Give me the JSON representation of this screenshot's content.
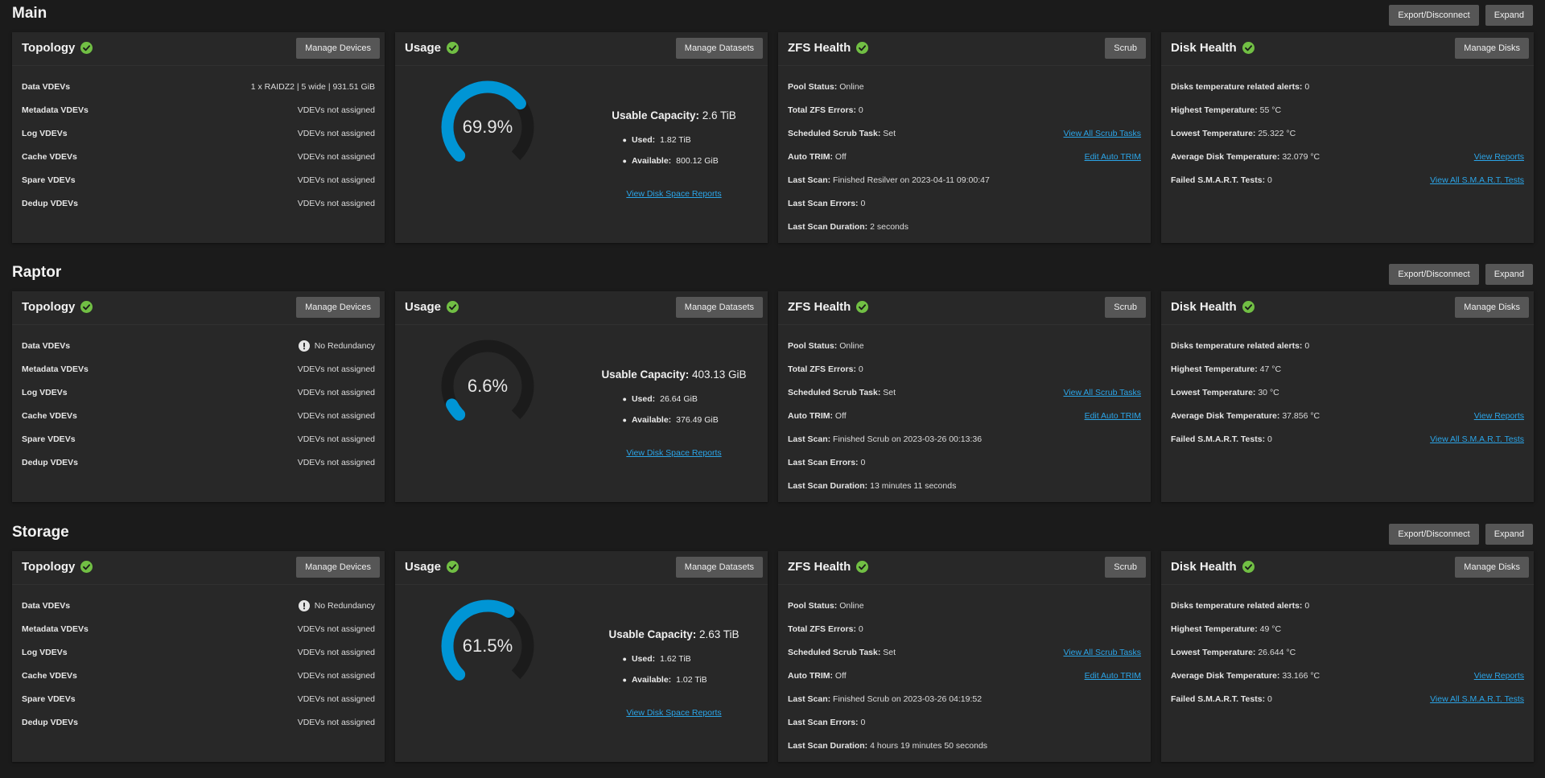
{
  "pool_button_labels": {
    "export": "Export/Disconnect",
    "expand": "Expand"
  },
  "card_titles": {
    "topology": "Topology",
    "usage": "Usage",
    "zfs": "ZFS Health",
    "disk": "Disk Health"
  },
  "card_buttons": {
    "topology": "Manage Devices",
    "usage": "Manage Datasets",
    "zfs": "Scrub",
    "disk": "Manage Disks"
  },
  "usage_labels": {
    "capacity": "Usable Capacity:",
    "used": "Used:",
    "available": "Available:",
    "report_link": "View Disk Space Reports"
  },
  "colors": {
    "ok_green": "#71bf44",
    "gauge_blue": "#0095d5",
    "gauge_track": "#1b1b1b",
    "link": "#2ba5e8"
  },
  "pools": [
    {
      "name": "Main",
      "topology": [
        {
          "label": "Data VDEVs",
          "value": "1 x RAIDZ2 | 5 wide | 931.51 GiB",
          "warn": false
        },
        {
          "label": "Metadata VDEVs",
          "value": "VDEVs not assigned",
          "warn": false
        },
        {
          "label": "Log VDEVs",
          "value": "VDEVs not assigned",
          "warn": false
        },
        {
          "label": "Cache VDEVs",
          "value": "VDEVs not assigned",
          "warn": false
        },
        {
          "label": "Spare VDEVs",
          "value": "VDEVs not assigned",
          "warn": false
        },
        {
          "label": "Dedup VDEVs",
          "value": "VDEVs not assigned",
          "warn": false
        }
      ],
      "usage": {
        "percent_text": "69.9%",
        "percent": 69.9,
        "capacity": "2.6 TiB",
        "used": "1.82 TiB",
        "available": "800.12 GiB"
      },
      "zfs": [
        {
          "label": "Pool Status:",
          "value": "Online",
          "link": ""
        },
        {
          "label": "Total ZFS Errors:",
          "value": "0",
          "link": ""
        },
        {
          "label": "Scheduled Scrub Task:",
          "value": "Set",
          "link": "View All Scrub Tasks"
        },
        {
          "label": "Auto TRIM:",
          "value": "Off",
          "link": "Edit Auto TRIM"
        },
        {
          "label": "Last Scan:",
          "value": "Finished Resilver on 2023-04-11 09:00:47",
          "link": ""
        },
        {
          "label": "Last Scan Errors:",
          "value": "0",
          "link": ""
        },
        {
          "label": "Last Scan Duration:",
          "value": "2 seconds",
          "link": ""
        }
      ],
      "disk": [
        {
          "label": "Disks temperature related alerts:",
          "value": "0",
          "link": ""
        },
        {
          "label": "Highest Temperature:",
          "value": "55 °C",
          "link": ""
        },
        {
          "label": "Lowest Temperature:",
          "value": "25.322 °C",
          "link": ""
        },
        {
          "label": "Average Disk Temperature:",
          "value": "32.079 °C",
          "link": "View Reports"
        },
        {
          "label": "Failed S.M.A.R.T. Tests:",
          "value": "0",
          "link": "View All S.M.A.R.T. Tests"
        }
      ]
    },
    {
      "name": "Raptor",
      "topology": [
        {
          "label": "Data VDEVs",
          "value": "No Redundancy",
          "warn": true
        },
        {
          "label": "Metadata VDEVs",
          "value": "VDEVs not assigned",
          "warn": false
        },
        {
          "label": "Log VDEVs",
          "value": "VDEVs not assigned",
          "warn": false
        },
        {
          "label": "Cache VDEVs",
          "value": "VDEVs not assigned",
          "warn": false
        },
        {
          "label": "Spare VDEVs",
          "value": "VDEVs not assigned",
          "warn": false
        },
        {
          "label": "Dedup VDEVs",
          "value": "VDEVs not assigned",
          "warn": false
        }
      ],
      "usage": {
        "percent_text": "6.6%",
        "percent": 6.6,
        "capacity": "403.13 GiB",
        "used": "26.64 GiB",
        "available": "376.49 GiB"
      },
      "zfs": [
        {
          "label": "Pool Status:",
          "value": "Online",
          "link": ""
        },
        {
          "label": "Total ZFS Errors:",
          "value": "0",
          "link": ""
        },
        {
          "label": "Scheduled Scrub Task:",
          "value": "Set",
          "link": "View All Scrub Tasks"
        },
        {
          "label": "Auto TRIM:",
          "value": "Off",
          "link": "Edit Auto TRIM"
        },
        {
          "label": "Last Scan:",
          "value": "Finished Scrub on 2023-03-26 00:13:36",
          "link": ""
        },
        {
          "label": "Last Scan Errors:",
          "value": "0",
          "link": ""
        },
        {
          "label": "Last Scan Duration:",
          "value": "13 minutes 11 seconds",
          "link": ""
        }
      ],
      "disk": [
        {
          "label": "Disks temperature related alerts:",
          "value": "0",
          "link": ""
        },
        {
          "label": "Highest Temperature:",
          "value": "47 °C",
          "link": ""
        },
        {
          "label": "Lowest Temperature:",
          "value": "30 °C",
          "link": ""
        },
        {
          "label": "Average Disk Temperature:",
          "value": "37.856 °C",
          "link": "View Reports"
        },
        {
          "label": "Failed S.M.A.R.T. Tests:",
          "value": "0",
          "link": "View All S.M.A.R.T. Tests"
        }
      ]
    },
    {
      "name": "Storage",
      "topology": [
        {
          "label": "Data VDEVs",
          "value": "No Redundancy",
          "warn": true
        },
        {
          "label": "Metadata VDEVs",
          "value": "VDEVs not assigned",
          "warn": false
        },
        {
          "label": "Log VDEVs",
          "value": "VDEVs not assigned",
          "warn": false
        },
        {
          "label": "Cache VDEVs",
          "value": "VDEVs not assigned",
          "warn": false
        },
        {
          "label": "Spare VDEVs",
          "value": "VDEVs not assigned",
          "warn": false
        },
        {
          "label": "Dedup VDEVs",
          "value": "VDEVs not assigned",
          "warn": false
        }
      ],
      "usage": {
        "percent_text": "61.5%",
        "percent": 61.5,
        "capacity": "2.63 TiB",
        "used": "1.62 TiB",
        "available": "1.02 TiB"
      },
      "zfs": [
        {
          "label": "Pool Status:",
          "value": "Online",
          "link": ""
        },
        {
          "label": "Total ZFS Errors:",
          "value": "0",
          "link": ""
        },
        {
          "label": "Scheduled Scrub Task:",
          "value": "Set",
          "link": "View All Scrub Tasks"
        },
        {
          "label": "Auto TRIM:",
          "value": "Off",
          "link": "Edit Auto TRIM"
        },
        {
          "label": "Last Scan:",
          "value": "Finished Scrub on 2023-03-26 04:19:52",
          "link": ""
        },
        {
          "label": "Last Scan Errors:",
          "value": "0",
          "link": ""
        },
        {
          "label": "Last Scan Duration:",
          "value": "4 hours 19 minutes 50 seconds",
          "link": ""
        }
      ],
      "disk": [
        {
          "label": "Disks temperature related alerts:",
          "value": "0",
          "link": ""
        },
        {
          "label": "Highest Temperature:",
          "value": "49 °C",
          "link": ""
        },
        {
          "label": "Lowest Temperature:",
          "value": "26.644 °C",
          "link": ""
        },
        {
          "label": "Average Disk Temperature:",
          "value": "33.166 °C",
          "link": "View Reports"
        },
        {
          "label": "Failed S.M.A.R.T. Tests:",
          "value": "0",
          "link": "View All S.M.A.R.T. Tests"
        }
      ]
    }
  ]
}
